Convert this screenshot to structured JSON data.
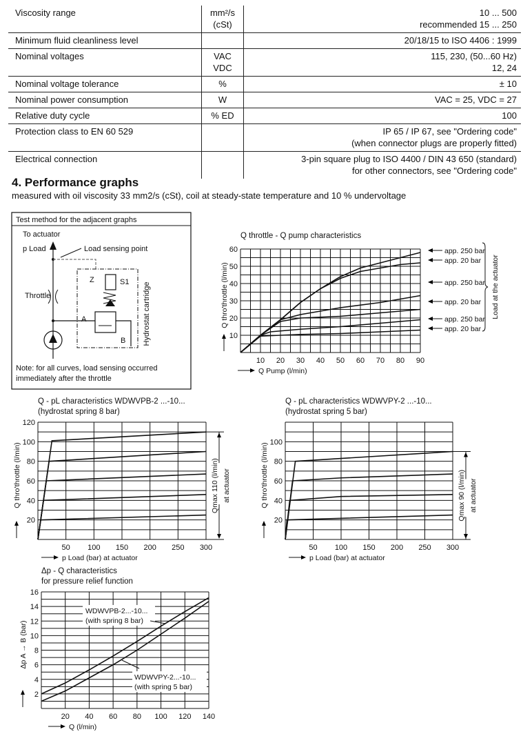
{
  "spec_table": {
    "rows": [
      {
        "param": "Viscosity range",
        "unit": [
          "mm²/s",
          "(cSt)"
        ],
        "value": [
          "10 ... 500",
          "recommended 15 ... 250"
        ]
      },
      {
        "param": "Minimum fluid cleanliness level",
        "unit": [
          ""
        ],
        "value": [
          "20/18/15 to ISO 4406 : 1999"
        ]
      },
      {
        "param": "Nominal voltages",
        "unit": [
          "VAC",
          "VDC"
        ],
        "value": [
          "115, 230, (50...60 Hz)",
          "12, 24"
        ]
      },
      {
        "param": "Nominal voltage tolerance",
        "unit": [
          "%"
        ],
        "value": [
          "± 10"
        ]
      },
      {
        "param": "Nominal power consumption",
        "unit": [
          "W"
        ],
        "value": [
          "VAC = 25, VDC = 27"
        ]
      },
      {
        "param": "Relative duty cycle",
        "unit": [
          "% ED"
        ],
        "value": [
          "100"
        ]
      },
      {
        "param": "Protection class to EN 60 529",
        "unit": [
          ""
        ],
        "value": [
          "IP 65 / IP 67, see \"Ordering code\"",
          "(when connector plugs are properly fitted)"
        ]
      },
      {
        "param": "Electrical connection",
        "unit": [
          ""
        ],
        "value": [
          "3-pin square plug to ISO 4400 / DIN 43 650 (standard)",
          "for other connectors, see \"Ordering code\""
        ]
      }
    ]
  },
  "section": {
    "heading": "4.   Performance graphs",
    "subtitle": "measured with oil viscosity 33 mm2/s (cSt), coil at steady-state temperature and 10 % undervoltage"
  },
  "test_method": {
    "title": "Test method for the adjacent graphs",
    "labels": {
      "to_actuator": "To actuator",
      "p_load": "p Load",
      "load_sensing": "Load sensing point",
      "throttle": "Throttle",
      "z": "Z",
      "s1": "S1",
      "a": "A",
      "b": "B",
      "cartridge": "Hydrostat cartridge"
    },
    "note": [
      "Note: for all curves, load sensing occurred",
      "immediately after the throttle"
    ]
  },
  "chart_data": [
    {
      "type": "line",
      "title": "Q throttle - Q pump characteristics",
      "xlabel": "Q Pump (l/min)",
      "ylabel": "Q thro'throttle (l/min)",
      "xlim": [
        0,
        90
      ],
      "ylim": [
        0,
        60
      ],
      "grid": true,
      "xticks": [
        10,
        20,
        30,
        40,
        50,
        60,
        70,
        80,
        90
      ],
      "yticks": [
        10,
        20,
        30,
        40,
        50,
        60
      ],
      "series": [
        {
          "name": "app. 250 bar",
          "x": [
            0,
            10,
            20,
            30,
            40,
            50,
            60,
            70,
            80,
            90
          ],
          "y": [
            0,
            10,
            19,
            29,
            37,
            44,
            49,
            52,
            55,
            58
          ]
        },
        {
          "name": "app.  20 bar",
          "x": [
            0,
            10,
            20,
            30,
            40,
            45,
            50,
            60,
            70,
            80,
            90
          ],
          "y": [
            0,
            10,
            19,
            29,
            37,
            40,
            43,
            47,
            49,
            51,
            52
          ]
        },
        {
          "name": "app. 250 bar",
          "x": [
            0,
            10,
            20,
            30,
            50,
            70,
            90
          ],
          "y": [
            0,
            10,
            19,
            22,
            26,
            29,
            33
          ]
        },
        {
          "name": "app.  20 bar",
          "x": [
            0,
            10,
            20,
            30,
            50,
            70,
            90
          ],
          "y": [
            0,
            10,
            18,
            20,
            21,
            23,
            25
          ]
        },
        {
          "name": "app. 250 bar",
          "x": [
            0,
            10,
            15,
            30,
            50,
            70,
            90
          ],
          "y": [
            0,
            10,
            12,
            13.5,
            15,
            17,
            19
          ]
        },
        {
          "name": "app.  20 bar",
          "x": [
            0,
            10,
            30,
            50,
            70,
            90
          ],
          "y": [
            0,
            9.5,
            10.5,
            11,
            12,
            13
          ]
        }
      ],
      "bracket_label": "Load at the actuator"
    },
    {
      "type": "line",
      "title": [
        "Q - pL characteristics WDWVPB-2 ...-10...",
        "(hydrostat spring 8 bar)"
      ],
      "xlabel": "p Load (bar) at actuator",
      "ylabel": "Q thro'throttle (l/min)",
      "xlim": [
        0,
        300
      ],
      "ylim": [
        0,
        120
      ],
      "grid": true,
      "xticks": [
        50,
        100,
        150,
        200,
        250,
        300
      ],
      "yticks": [
        20,
        40,
        60,
        80,
        100,
        120
      ],
      "series": [
        {
          "x": [
            0,
            25,
            300
          ],
          "y": [
            0,
            101,
            110
          ]
        },
        {
          "x": [
            0,
            20,
            300
          ],
          "y": [
            0,
            80,
            90
          ]
        },
        {
          "x": [
            0,
            15,
            300
          ],
          "y": [
            0,
            60,
            67
          ]
        },
        {
          "x": [
            0,
            10,
            300
          ],
          "y": [
            0,
            40,
            46
          ]
        },
        {
          "x": [
            0,
            5,
            300
          ],
          "y": [
            0,
            20,
            25
          ]
        }
      ],
      "annotation": [
        "Qmax 110 (l/min)",
        "at actuator"
      ],
      "annotation_value": 110
    },
    {
      "type": "line",
      "title": [
        "Q - pL characteristics WDWVPY-2 ...-10...",
        "(hydrostat spring 5 bar)"
      ],
      "xlabel": "p Load (bar) at actuator",
      "ylabel": "Q thro'throttle (l/min)",
      "xlim": [
        0,
        300
      ],
      "ylim": [
        0,
        120
      ],
      "grid": true,
      "xticks": [
        50,
        100,
        150,
        200,
        250,
        300
      ],
      "yticks": [
        20,
        40,
        60,
        80,
        100
      ],
      "series": [
        {
          "x": [
            0,
            18,
            300
          ],
          "y": [
            0,
            80,
            90
          ]
        },
        {
          "x": [
            0,
            13,
            100,
            300
          ],
          "y": [
            0,
            60,
            63,
            67
          ]
        },
        {
          "x": [
            0,
            8,
            100,
            300
          ],
          "y": [
            0,
            40,
            44,
            46
          ]
        },
        {
          "x": [
            0,
            3,
            300
          ],
          "y": [
            0,
            20,
            25
          ]
        }
      ],
      "annotation": [
        "Qmax 90 (l/min)",
        "at actuator"
      ],
      "annotation_value": 90
    },
    {
      "type": "line",
      "title": [
        "Δp - Q characteristics",
        "for pressure relief function"
      ],
      "xlabel": "Q (l/min)",
      "ylabel": "Δp  A → B (bar)",
      "xlim": [
        0,
        140
      ],
      "ylim": [
        0,
        16
      ],
      "grid": true,
      "xticks": [
        20,
        40,
        60,
        80,
        100,
        120,
        140
      ],
      "yticks": [
        2,
        4,
        6,
        8,
        10,
        12,
        14,
        16
      ],
      "series": [
        {
          "name": "WDWVPB-2...-10... (with spring 8 bar)",
          "x": [
            0,
            20,
            40,
            60,
            80,
            100,
            120,
            140
          ],
          "y": [
            2,
            3.5,
            5.3,
            7.2,
            9.2,
            11.3,
            13.3,
            15.2
          ]
        },
        {
          "name": "WDWVPY-2...-10... (with spring 5 bar)",
          "x": [
            0,
            20,
            40,
            60,
            80,
            100,
            120,
            140
          ],
          "y": [
            1,
            2.4,
            4.2,
            6,
            8,
            10.2,
            12.4,
            14.7
          ]
        }
      ],
      "series_labels": [
        [
          "WDWVPB-2...-10...",
          "(with spring 8 bar)"
        ],
        [
          "WDWVPY-2...-10...",
          "(with spring 5 bar)"
        ]
      ]
    }
  ]
}
